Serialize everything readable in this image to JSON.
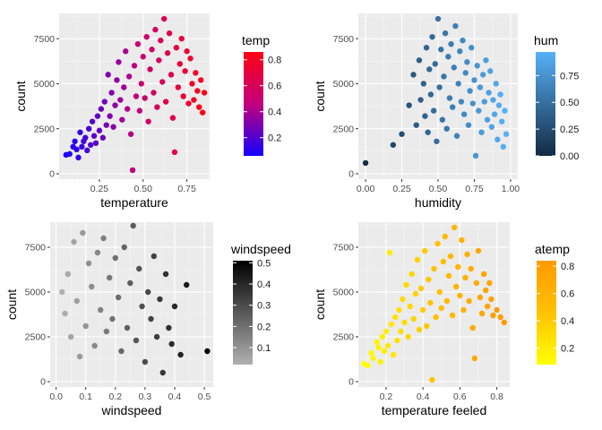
{
  "chart_data": [
    {
      "type": "scatter",
      "title": "",
      "xlabel": "temperature",
      "ylabel": "count",
      "xlim": [
        0.02,
        0.88
      ],
      "ylim": [
        -300,
        8900
      ],
      "xticks": [
        0.25,
        0.5,
        0.75
      ],
      "xtick_labels": [
        "0.25",
        "0.50",
        "0.75"
      ],
      "yticks": [
        0,
        2500,
        5000,
        7500
      ],
      "ytick_labels": [
        "0",
        "2500",
        "5000",
        "7500"
      ],
      "legend": {
        "title": "temp",
        "range": [
          0.06,
          0.86
        ],
        "breaks": [
          0.2,
          0.4,
          0.6,
          0.8
        ],
        "break_labels": [
          "0.2",
          "0.4",
          "0.6",
          "0.8"
        ],
        "colors": [
          "#1400ff",
          "#c2007d",
          "#ff0015"
        ],
        "placement": "right"
      },
      "points": [
        [
          0.06,
          1050
        ],
        [
          0.08,
          1100
        ],
        [
          0.1,
          1500
        ],
        [
          0.11,
          1800
        ],
        [
          0.12,
          1350
        ],
        [
          0.13,
          900
        ],
        [
          0.14,
          2300
        ],
        [
          0.15,
          1500
        ],
        [
          0.16,
          1800
        ],
        [
          0.17,
          2000
        ],
        [
          0.18,
          1300
        ],
        [
          0.19,
          2500
        ],
        [
          0.2,
          1600
        ],
        [
          0.21,
          2900
        ],
        [
          0.22,
          2100
        ],
        [
          0.23,
          1700
        ],
        [
          0.24,
          3200
        ],
        [
          0.25,
          2400
        ],
        [
          0.26,
          3600
        ],
        [
          0.27,
          2000
        ],
        [
          0.28,
          4000
        ],
        [
          0.29,
          2700
        ],
        [
          0.3,
          5500
        ],
        [
          0.31,
          3200
        ],
        [
          0.32,
          4500
        ],
        [
          0.33,
          2600
        ],
        [
          0.34,
          3800
        ],
        [
          0.35,
          5200
        ],
        [
          0.36,
          6200
        ],
        [
          0.37,
          4100
        ],
        [
          0.38,
          3000
        ],
        [
          0.39,
          4800
        ],
        [
          0.4,
          6800
        ],
        [
          0.41,
          3600
        ],
        [
          0.42,
          5400
        ],
        [
          0.43,
          2200
        ],
        [
          0.44,
          200
        ],
        [
          0.45,
          6000
        ],
        [
          0.46,
          4300
        ],
        [
          0.47,
          7200
        ],
        [
          0.48,
          3500
        ],
        [
          0.49,
          5000
        ],
        [
          0.5,
          6500
        ],
        [
          0.51,
          4200
        ],
        [
          0.52,
          7600
        ],
        [
          0.53,
          2900
        ],
        [
          0.54,
          5800
        ],
        [
          0.55,
          6900
        ],
        [
          0.56,
          4500
        ],
        [
          0.57,
          8000
        ],
        [
          0.58,
          3700
        ],
        [
          0.59,
          6300
        ],
        [
          0.6,
          7400
        ],
        [
          0.61,
          5100
        ],
        [
          0.62,
          8600
        ],
        [
          0.63,
          4000
        ],
        [
          0.64,
          6700
        ],
        [
          0.65,
          7800
        ],
        [
          0.66,
          5500
        ],
        [
          0.67,
          3100
        ],
        [
          0.68,
          1200
        ],
        [
          0.69,
          7000
        ],
        [
          0.7,
          4800
        ],
        [
          0.71,
          6100
        ],
        [
          0.72,
          7500
        ],
        [
          0.73,
          4300
        ],
        [
          0.74,
          5700
        ],
        [
          0.75,
          6800
        ],
        [
          0.76,
          3900
        ],
        [
          0.77,
          6400
        ],
        [
          0.78,
          5000
        ],
        [
          0.79,
          4100
        ],
        [
          0.8,
          5600
        ],
        [
          0.81,
          4600
        ],
        [
          0.82,
          3700
        ],
        [
          0.83,
          5200
        ],
        [
          0.84,
          3400
        ],
        [
          0.85,
          4500
        ]
      ]
    },
    {
      "type": "scatter",
      "title": "",
      "xlabel": "humidity",
      "ylabel": "count",
      "xlim": [
        -0.05,
        1.05
      ],
      "ylim": [
        -300,
        8900
      ],
      "xticks": [
        0,
        0.25,
        0.5,
        0.75,
        1
      ],
      "xtick_labels": [
        "0.00",
        "0.25",
        "0.50",
        "0.75",
        "1.00"
      ],
      "yticks": [
        0,
        2500,
        5000,
        7500
      ],
      "ytick_labels": [
        "0",
        "2500",
        "5000",
        "7500"
      ],
      "legend": {
        "title": "hum",
        "range": [
          0,
          0.97
        ],
        "breaks": [
          0,
          0.25,
          0.5,
          0.75
        ],
        "break_labels": [
          "0.00",
          "0.25",
          "0.50",
          "0.75"
        ],
        "colors": [
          "#132b43",
          "#56b1f7"
        ],
        "placement": "right"
      },
      "points": [
        [
          0.0,
          600
        ],
        [
          0.19,
          1600
        ],
        [
          0.25,
          2200
        ],
        [
          0.3,
          3800
        ],
        [
          0.33,
          5500
        ],
        [
          0.35,
          2700
        ],
        [
          0.37,
          6300
        ],
        [
          0.38,
          4100
        ],
        [
          0.4,
          5000
        ],
        [
          0.41,
          3200
        ],
        [
          0.42,
          7000
        ],
        [
          0.43,
          2300
        ],
        [
          0.44,
          5800
        ],
        [
          0.45,
          4400
        ],
        [
          0.46,
          7600
        ],
        [
          0.47,
          3500
        ],
        [
          0.48,
          6100
        ],
        [
          0.49,
          1800
        ],
        [
          0.5,
          8600
        ],
        [
          0.51,
          4800
        ],
        [
          0.52,
          6900
        ],
        [
          0.53,
          3000
        ],
        [
          0.54,
          5400
        ],
        [
          0.55,
          7800
        ],
        [
          0.56,
          2500
        ],
        [
          0.57,
          6500
        ],
        [
          0.58,
          4200
        ],
        [
          0.59,
          7200
        ],
        [
          0.6,
          3700
        ],
        [
          0.61,
          5900
        ],
        [
          0.62,
          8200
        ],
        [
          0.63,
          2100
        ],
        [
          0.64,
          5000
        ],
        [
          0.65,
          6800
        ],
        [
          0.66,
          4000
        ],
        [
          0.67,
          7400
        ],
        [
          0.68,
          3300
        ],
        [
          0.69,
          5600
        ],
        [
          0.7,
          6200
        ],
        [
          0.71,
          2700
        ],
        [
          0.72,
          4600
        ],
        [
          0.73,
          7000
        ],
        [
          0.74,
          3900
        ],
        [
          0.75,
          5200
        ],
        [
          0.76,
          1000
        ],
        [
          0.77,
          6000
        ],
        [
          0.78,
          3500
        ],
        [
          0.79,
          4800
        ],
        [
          0.8,
          2300
        ],
        [
          0.81,
          5500
        ],
        [
          0.82,
          4000
        ],
        [
          0.83,
          6300
        ],
        [
          0.84,
          3000
        ],
        [
          0.85,
          4500
        ],
        [
          0.86,
          5700
        ],
        [
          0.87,
          2600
        ],
        [
          0.88,
          4100
        ],
        [
          0.89,
          3300
        ],
        [
          0.9,
          5000
        ],
        [
          0.91,
          1900
        ],
        [
          0.92,
          3800
        ],
        [
          0.93,
          4400
        ],
        [
          0.94,
          2900
        ],
        [
          0.95,
          1500
        ],
        [
          0.96,
          3500
        ],
        [
          0.97,
          2200
        ]
      ]
    },
    {
      "type": "scatter",
      "title": "",
      "xlabel": "windspeed",
      "ylabel": "count",
      "xlim": [
        -0.02,
        0.53
      ],
      "ylim": [
        -300,
        8900
      ],
      "xticks": [
        0,
        0.1,
        0.2,
        0.3,
        0.4,
        0.5
      ],
      "xtick_labels": [
        "0.0",
        "0.1",
        "0.2",
        "0.3",
        "0.4",
        "0.5"
      ],
      "yticks": [
        0,
        2500,
        5000,
        7500
      ],
      "ytick_labels": [
        "0",
        "2500",
        "5000",
        "7500"
      ],
      "legend": {
        "title": "windspeed",
        "range": [
          0.02,
          0.51
        ],
        "breaks": [
          0.1,
          0.2,
          0.3,
          0.4,
          0.5
        ],
        "break_labels": [
          "0.1",
          "0.2",
          "0.3",
          "0.4",
          "0.5"
        ],
        "colors": [
          "#b0b0b0",
          "#000000"
        ],
        "placement": "right"
      },
      "points": [
        [
          0.02,
          5000
        ],
        [
          0.03,
          3800
        ],
        [
          0.04,
          6000
        ],
        [
          0.05,
          2500
        ],
        [
          0.06,
          7800
        ],
        [
          0.07,
          4500
        ],
        [
          0.08,
          1400
        ],
        [
          0.09,
          8300
        ],
        [
          0.1,
          3100
        ],
        [
          0.11,
          6600
        ],
        [
          0.12,
          5300
        ],
        [
          0.13,
          2000
        ],
        [
          0.14,
          7200
        ],
        [
          0.15,
          4000
        ],
        [
          0.16,
          8000
        ],
        [
          0.17,
          2800
        ],
        [
          0.18,
          5800
        ],
        [
          0.19,
          3500
        ],
        [
          0.2,
          6900
        ],
        [
          0.21,
          4700
        ],
        [
          0.22,
          1700
        ],
        [
          0.23,
          7500
        ],
        [
          0.24,
          3000
        ],
        [
          0.25,
          5500
        ],
        [
          0.26,
          8700
        ],
        [
          0.27,
          2300
        ],
        [
          0.28,
          6300
        ],
        [
          0.29,
          4200
        ],
        [
          0.3,
          1100
        ],
        [
          0.31,
          5000
        ],
        [
          0.32,
          3500
        ],
        [
          0.33,
          7000
        ],
        [
          0.34,
          2500
        ],
        [
          0.35,
          4600
        ],
        [
          0.36,
          500
        ],
        [
          0.37,
          6000
        ],
        [
          0.38,
          3000
        ],
        [
          0.39,
          2100
        ],
        [
          0.4,
          4200
        ],
        [
          0.42,
          1500
        ],
        [
          0.44,
          5400
        ],
        [
          0.51,
          1700
        ]
      ]
    },
    {
      "type": "scatter",
      "title": "",
      "xlabel": "temperature feeled",
      "ylabel": "count",
      "xlim": [
        0.05,
        0.87
      ],
      "ylim": [
        -300,
        8900
      ],
      "xticks": [
        0.2,
        0.4,
        0.6,
        0.8
      ],
      "xtick_labels": [
        "0.2",
        "0.4",
        "0.6",
        "0.8"
      ],
      "yticks": [
        0,
        2500,
        5000,
        7500
      ],
      "ytick_labels": [
        "0",
        "2500",
        "5000",
        "7500"
      ],
      "legend": {
        "title": "atemp",
        "range": [
          0.08,
          0.84
        ],
        "breaks": [
          0.2,
          0.4,
          0.6,
          0.8
        ],
        "break_labels": [
          "0.2",
          "0.4",
          "0.6",
          "0.8"
        ],
        "colors": [
          "#ffff00",
          "#ffc200",
          "#ff9900"
        ],
        "placement": "right"
      },
      "points": [
        [
          0.08,
          1000
        ],
        [
          0.1,
          900
        ],
        [
          0.12,
          1600
        ],
        [
          0.13,
          1300
        ],
        [
          0.15,
          2200
        ],
        [
          0.16,
          1900
        ],
        [
          0.17,
          1100
        ],
        [
          0.18,
          2500
        ],
        [
          0.19,
          1700
        ],
        [
          0.2,
          2800
        ],
        [
          0.21,
          2000
        ],
        [
          0.22,
          7200
        ],
        [
          0.23,
          3200
        ],
        [
          0.24,
          1500
        ],
        [
          0.25,
          3600
        ],
        [
          0.26,
          2300
        ],
        [
          0.27,
          4000
        ],
        [
          0.28,
          2800
        ],
        [
          0.29,
          4600
        ],
        [
          0.3,
          3300
        ],
        [
          0.31,
          5400
        ],
        [
          0.32,
          2500
        ],
        [
          0.33,
          4200
        ],
        [
          0.34,
          6000
        ],
        [
          0.35,
          3500
        ],
        [
          0.36,
          4900
        ],
        [
          0.37,
          6800
        ],
        [
          0.38,
          2900
        ],
        [
          0.39,
          5200
        ],
        [
          0.4,
          4000
        ],
        [
          0.41,
          7300
        ],
        [
          0.42,
          3100
        ],
        [
          0.43,
          5700
        ],
        [
          0.44,
          4400
        ],
        [
          0.45,
          100
        ],
        [
          0.46,
          6300
        ],
        [
          0.47,
          3600
        ],
        [
          0.48,
          7700
        ],
        [
          0.49,
          5000
        ],
        [
          0.5,
          4100
        ],
        [
          0.51,
          6700
        ],
        [
          0.52,
          8100
        ],
        [
          0.53,
          4500
        ],
        [
          0.54,
          5900
        ],
        [
          0.55,
          7000
        ],
        [
          0.56,
          3700
        ],
        [
          0.57,
          8600
        ],
        [
          0.58,
          5300
        ],
        [
          0.59,
          6400
        ],
        [
          0.6,
          4800
        ],
        [
          0.61,
          7900
        ],
        [
          0.62,
          4000
        ],
        [
          0.63,
          5800
        ],
        [
          0.64,
          7100
        ],
        [
          0.65,
          4500
        ],
        [
          0.66,
          6300
        ],
        [
          0.67,
          3000
        ],
        [
          0.68,
          1300
        ],
        [
          0.69,
          5500
        ],
        [
          0.7,
          7300
        ],
        [
          0.71,
          4700
        ],
        [
          0.72,
          3800
        ],
        [
          0.73,
          6000
        ],
        [
          0.74,
          5100
        ],
        [
          0.75,
          4200
        ],
        [
          0.76,
          5500
        ],
        [
          0.77,
          4600
        ],
        [
          0.78,
          3700
        ],
        [
          0.8,
          4000
        ],
        [
          0.82,
          3600
        ],
        [
          0.84,
          3300
        ]
      ]
    }
  ]
}
